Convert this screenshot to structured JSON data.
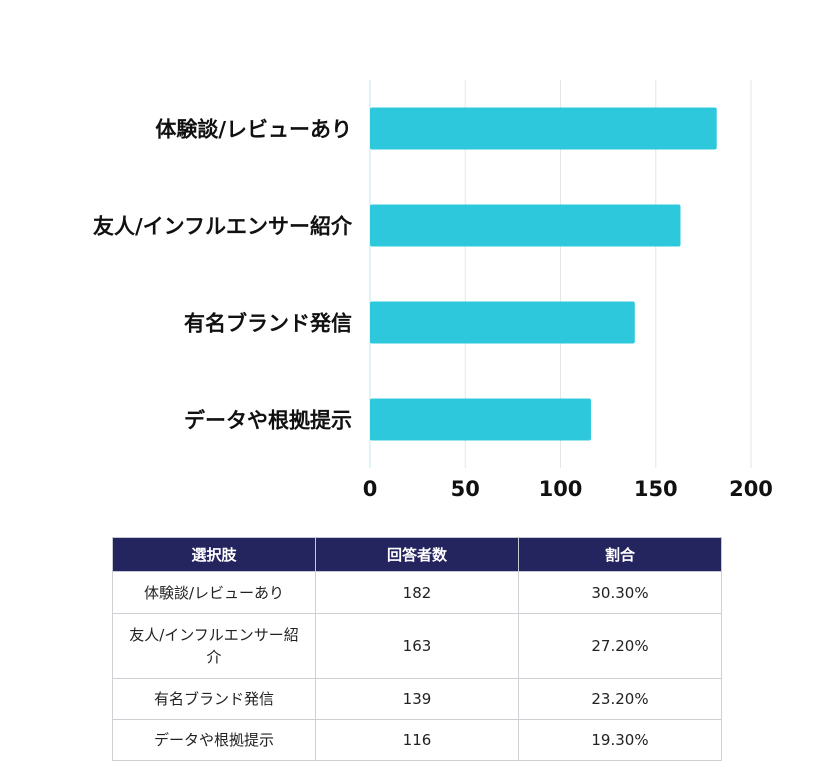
{
  "chart_data": {
    "type": "bar",
    "orientation": "horizontal",
    "categories": [
      "体験談/レビューあり",
      "友人/インフルエンサー紹介",
      "有名ブランド発信",
      "データや根拠提示"
    ],
    "values": [
      182,
      163,
      139,
      116
    ],
    "xlim": [
      0,
      200
    ],
    "xticks": [
      "0",
      "50",
      "100",
      "150",
      "200"
    ],
    "grid": "vertical",
    "legend": "none",
    "colors": {
      "bar": "#2ec8dc",
      "grid": "#e4e6ea",
      "axis": "#bfe9ef"
    }
  },
  "table": {
    "headers": [
      "選択肢",
      "回答者数",
      "割合"
    ],
    "rows": [
      {
        "choice": "体験談/レビューあり",
        "count": "182",
        "ratio": "30.30%"
      },
      {
        "choice": "友人/インフルエンサー紹介",
        "count": "163",
        "ratio": "27.20%"
      },
      {
        "choice": "有名ブランド発信",
        "count": "139",
        "ratio": "23.20%"
      },
      {
        "choice": "データや根拠提示",
        "count": "116",
        "ratio": "19.30%"
      }
    ],
    "colors": {
      "header_bg": "#24245e",
      "header_text": "#ffffff"
    }
  }
}
